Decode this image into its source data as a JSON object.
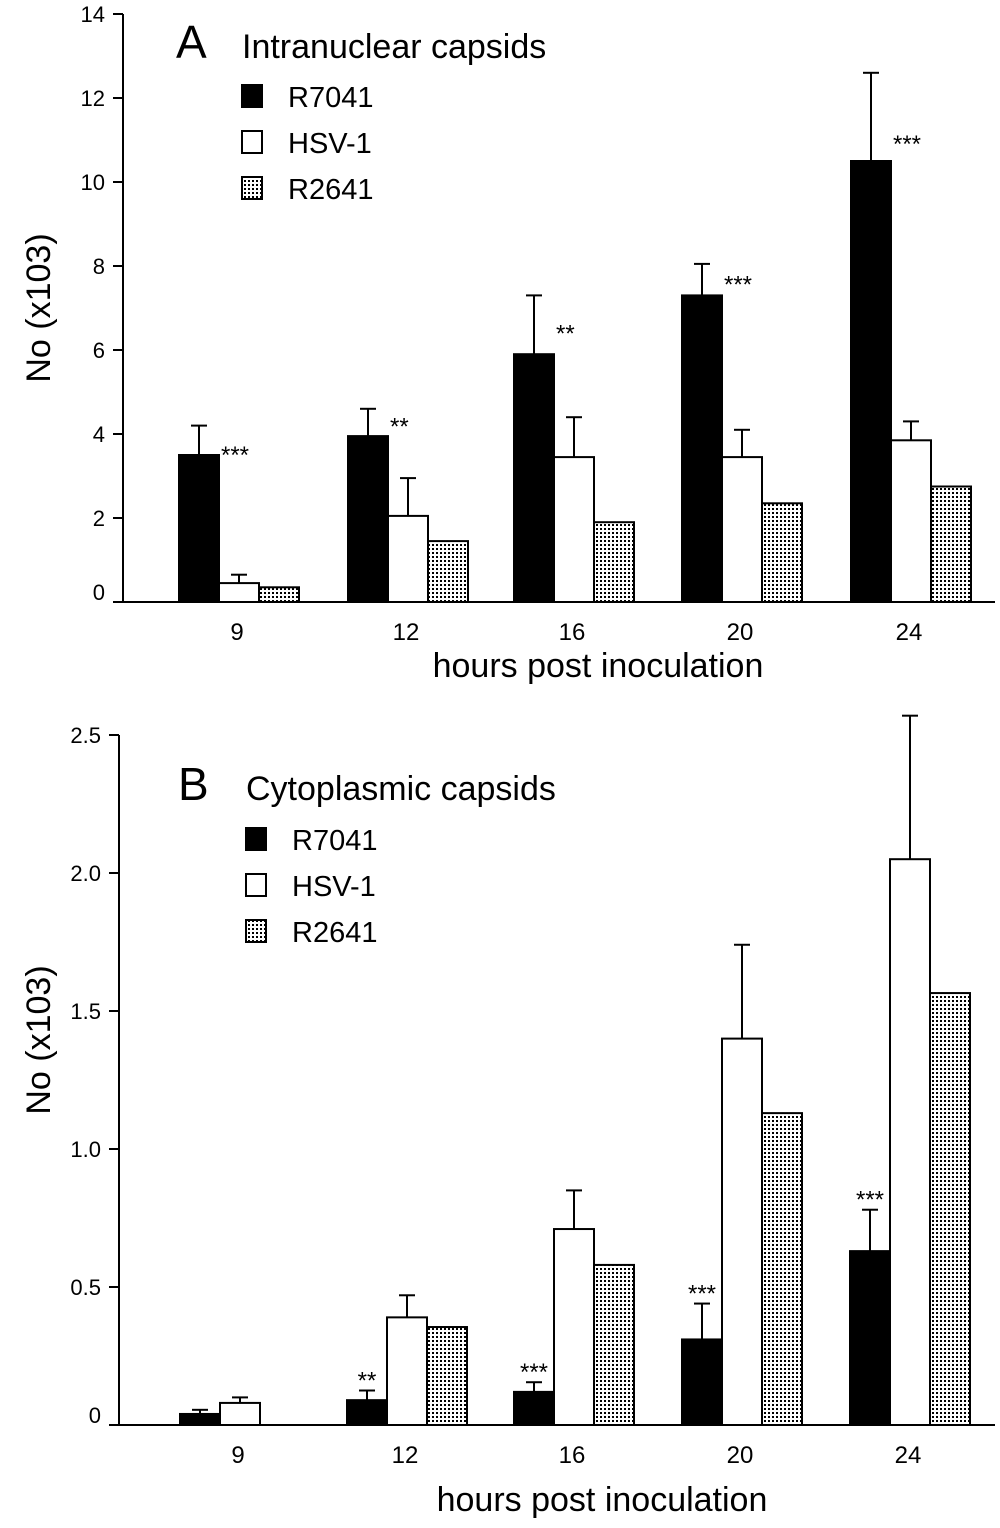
{
  "chart_data": [
    {
      "type": "bar",
      "panel_letter": "A",
      "title": "Intranuclear capsids",
      "xlabel": "hours post inoculation",
      "ylabel": "No (x103)",
      "categories": [
        "9",
        "12",
        "16",
        "20",
        "24"
      ],
      "ylim": [
        0,
        14
      ],
      "yticks": [
        "0",
        "2",
        "4",
        "6",
        "8",
        "10",
        "12",
        "14"
      ],
      "grid": false,
      "legend_position": "top-left",
      "series": [
        {
          "name": "R7041",
          "fill": "solid",
          "values": [
            3.5,
            3.95,
            5.9,
            7.3,
            10.5
          ],
          "errors": [
            0.7,
            0.65,
            1.4,
            0.75,
            2.1
          ]
        },
        {
          "name": "HSV-1",
          "fill": "open",
          "values": [
            0.45,
            2.05,
            3.45,
            3.45,
            3.85
          ],
          "errors": [
            0.2,
            0.9,
            0.95,
            0.65,
            0.45
          ]
        },
        {
          "name": "R2641",
          "fill": "dotted",
          "values": [
            0.35,
            1.45,
            1.9,
            2.35,
            2.75
          ],
          "errors": [
            0,
            0,
            0,
            0,
            0
          ]
        }
      ],
      "annotations": [
        "***",
        "**",
        "**",
        "***",
        "***"
      ]
    },
    {
      "type": "bar",
      "panel_letter": "B",
      "title": "Cytoplasmic capsids",
      "xlabel": "hours post inoculation",
      "ylabel": "No (x103)",
      "categories": [
        "9",
        "12",
        "16",
        "20",
        "24"
      ],
      "ylim": [
        0,
        2.5
      ],
      "yticks": [
        "0",
        "0.5",
        "1.0",
        "1.5",
        "2.0",
        "2.5"
      ],
      "grid": false,
      "legend_position": "top-left",
      "series": [
        {
          "name": "R7041",
          "fill": "solid",
          "values": [
            0.04,
            0.09,
            0.12,
            0.31,
            0.63
          ],
          "errors": [
            0.015,
            0.035,
            0.035,
            0.13,
            0.15
          ]
        },
        {
          "name": "HSV-1",
          "fill": "open",
          "values": [
            0.08,
            0.39,
            0.71,
            1.4,
            2.05
          ],
          "errors": [
            0.02,
            0.08,
            0.14,
            0.34,
            0.52
          ]
        },
        {
          "name": "R2641",
          "fill": "dotted",
          "values": [
            0,
            0.355,
            0.58,
            1.13,
            1.565
          ],
          "errors": [
            0,
            0,
            0,
            0,
            0
          ]
        }
      ],
      "annotations": [
        "",
        "**",
        "***",
        "***",
        "***"
      ]
    }
  ]
}
